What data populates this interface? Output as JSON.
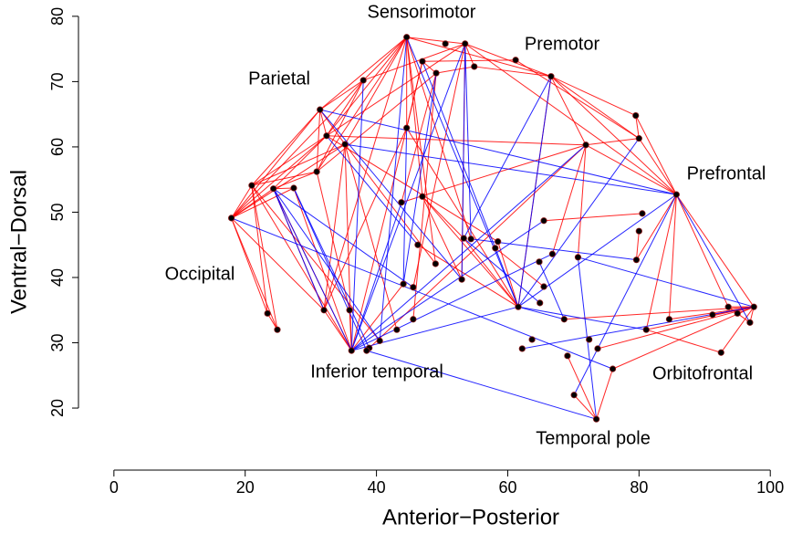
{
  "chart_data": {
    "type": "network",
    "xlabel": "Anterior−Posterior",
    "ylabel": "Ventral−Dorsal",
    "xlim": [
      -5.4,
      101.5
    ],
    "ylim": [
      10.5,
      80.4
    ],
    "xticks": [
      0,
      20,
      40,
      60,
      80,
      100
    ],
    "yticks": [
      20,
      30,
      40,
      50,
      60,
      70,
      80
    ],
    "annotations": [
      "Sensorimotor",
      "Premotor",
      "Parietal",
      "Prefrontal",
      "Occipital",
      "Inferior temporal",
      "Orbitofrontal",
      "Temporal pole"
    ],
    "node_color": "#000000",
    "x": [
      44.6,
      50.5,
      53.5,
      47.0,
      54.9,
      61.2,
      66.6,
      38.0,
      49.1,
      31.4,
      79.5,
      80.0,
      32.4,
      35.2,
      44.6,
      71.9,
      30.9,
      21.0,
      24.3,
      27.4,
      85.7,
      47.0,
      43.8,
      80.5,
      17.9,
      80.0,
      65.5,
      46.3,
      53.3,
      54.4,
      58.5,
      66.8,
      70.7,
      64.8,
      58.1,
      49.0,
      79.6,
      53.0,
      65.5,
      44.1,
      45.6,
      61.6,
      64.9,
      93.6,
      97.5,
      23.4,
      35.9,
      32.0,
      95.0,
      91.2,
      84.6,
      68.6,
      45.6,
      96.9,
      43.1,
      24.9,
      81.1,
      40.5,
      63.7,
      72.4,
      38.9,
      36.2,
      62.2,
      73.7,
      92.5,
      69.1,
      38.5,
      76.0,
      70.1,
      73.5
    ],
    "y": [
      76.8,
      75.8,
      75.8,
      73.1,
      72.3,
      73.3,
      70.8,
      70.2,
      71.3,
      65.7,
      64.8,
      61.3,
      61.7,
      60.4,
      62.9,
      60.3,
      56.2,
      54.1,
      53.6,
      53.7,
      52.7,
      52.4,
      51.5,
      49.8,
      49.1,
      47.1,
      48.7,
      45.0,
      46.0,
      45.9,
      45.5,
      43.6,
      43.1,
      42.4,
      44.5,
      42.1,
      42.7,
      39.7,
      38.6,
      39.0,
      38.5,
      35.5,
      36.1,
      35.5,
      35.5,
      34.5,
      35.0,
      35.0,
      34.5,
      34.3,
      33.6,
      33.6,
      33.6,
      33.1,
      32.0,
      32.0,
      32.0,
      30.3,
      30.5,
      30.5,
      29.2,
      28.8,
      29.1,
      29.1,
      28.5,
      28.0,
      28.8,
      26.0,
      22.0,
      18.3
    ],
    "edges": [
      {
        "color": "#ff0000",
        "pairs": [
          [
            0,
            7
          ],
          [
            0,
            12
          ],
          [
            0,
            13
          ],
          [
            0,
            14
          ],
          [
            0,
            2
          ],
          [
            0,
            6
          ],
          [
            0,
            9
          ],
          [
            0,
            16
          ],
          [
            0,
            21
          ],
          [
            0,
            29
          ],
          [
            0,
            47
          ],
          [
            2,
            6
          ],
          [
            2,
            4
          ],
          [
            2,
            7
          ],
          [
            2,
            12
          ],
          [
            2,
            20
          ],
          [
            2,
            37
          ],
          [
            6,
            10
          ],
          [
            6,
            11
          ],
          [
            6,
            20
          ],
          [
            6,
            15
          ],
          [
            6,
            41
          ],
          [
            6,
            4
          ],
          [
            7,
            9
          ],
          [
            7,
            12
          ],
          [
            7,
            16
          ],
          [
            7,
            24
          ],
          [
            9,
            12
          ],
          [
            9,
            17
          ],
          [
            9,
            16
          ],
          [
            9,
            24
          ],
          [
            9,
            13
          ],
          [
            12,
            17
          ],
          [
            12,
            24
          ],
          [
            12,
            18
          ],
          [
            12,
            15
          ],
          [
            13,
            24
          ],
          [
            13,
            17
          ],
          [
            13,
            47
          ],
          [
            13,
            61
          ],
          [
            17,
            24
          ],
          [
            17,
            45
          ],
          [
            17,
            55
          ],
          [
            17,
            61
          ],
          [
            17,
            16
          ],
          [
            18,
            19
          ],
          [
            18,
            47
          ],
          [
            18,
            61
          ],
          [
            19,
            61
          ],
          [
            24,
            45
          ],
          [
            24,
            55
          ],
          [
            24,
            47
          ],
          [
            24,
            18
          ],
          [
            24,
            19
          ],
          [
            16,
            18
          ],
          [
            16,
            46
          ],
          [
            20,
            44
          ],
          [
            20,
            43
          ],
          [
            20,
            10
          ],
          [
            20,
            15
          ],
          [
            20,
            11
          ],
          [
            20,
            50
          ],
          [
            20,
            56
          ],
          [
            10,
            11
          ],
          [
            11,
            15
          ],
          [
            44,
            43
          ],
          [
            44,
            48
          ],
          [
            44,
            49
          ],
          [
            44,
            53
          ],
          [
            44,
            50
          ],
          [
            44,
            56
          ],
          [
            44,
            64
          ],
          [
            44,
            51
          ],
          [
            43,
            53
          ],
          [
            64,
            56
          ],
          [
            69,
            67
          ],
          [
            69,
            65
          ],
          [
            69,
            68
          ],
          [
            41,
            28
          ],
          [
            41,
            14
          ],
          [
            41,
            30
          ],
          [
            41,
            21
          ],
          [
            21,
            28
          ],
          [
            21,
            37
          ],
          [
            14,
            47
          ],
          [
            14,
            61
          ],
          [
            14,
            3
          ],
          [
            3,
            8
          ],
          [
            3,
            14
          ],
          [
            4,
            8
          ],
          [
            5,
            11
          ],
          [
            5,
            3
          ],
          [
            36,
            20
          ],
          [
            36,
            25
          ],
          [
            26,
            23
          ],
          [
            31,
            15
          ],
          [
            32,
            15
          ],
          [
            27,
            41
          ],
          [
            35,
            0
          ],
          [
            34,
            38
          ],
          [
            39,
            61
          ],
          [
            40,
            2
          ],
          [
            52,
            8
          ],
          [
            54,
            13
          ],
          [
            57,
            17
          ],
          [
            47,
            61
          ],
          [
            46,
            61
          ],
          [
            45,
            55
          ],
          [
            60,
            15
          ],
          [
            67,
            44
          ],
          [
            63,
            44
          ],
          [
            15,
            22
          ],
          [
            8,
            22
          ],
          [
            8,
            16
          ],
          [
            12,
            30
          ],
          [
            13,
            35
          ]
        ]
      },
      {
        "color": "#0000ff",
        "pairs": [
          [
            18,
            61
          ],
          [
            18,
            47
          ],
          [
            18,
            57
          ],
          [
            18,
            40
          ],
          [
            19,
            66
          ],
          [
            19,
            60
          ],
          [
            7,
            61
          ],
          [
            8,
            39
          ],
          [
            2,
            29
          ],
          [
            3,
            41
          ],
          [
            0,
            57
          ],
          [
            0,
            41
          ],
          [
            2,
            61
          ],
          [
            6,
            41
          ],
          [
            6,
            28
          ],
          [
            11,
            41
          ],
          [
            15,
            61
          ],
          [
            20,
            41
          ],
          [
            20,
            53
          ],
          [
            20,
            9
          ],
          [
            20,
            13
          ],
          [
            41,
            61
          ],
          [
            41,
            56
          ],
          [
            44,
            62
          ],
          [
            44,
            32
          ],
          [
            51,
            41
          ],
          [
            42,
            28
          ],
          [
            26,
            61
          ],
          [
            31,
            61
          ],
          [
            22,
            61
          ],
          [
            29,
            36
          ],
          [
            33,
            51
          ],
          [
            37,
            2
          ],
          [
            24,
            67
          ],
          [
            66,
            69
          ],
          [
            32,
            69
          ],
          [
            68,
            20
          ],
          [
            9,
            37
          ],
          [
            12,
            27
          ],
          [
            14,
            39
          ]
        ]
      }
    ]
  }
}
